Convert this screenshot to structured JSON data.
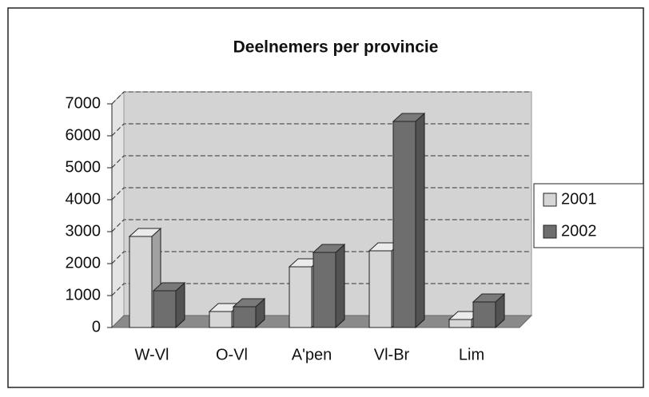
{
  "chart_data": {
    "type": "bar3d",
    "title": "Deelnemers per provincie",
    "categories": [
      "W-Vl",
      "O-Vl",
      "A'pen",
      "Vl-Br",
      "Lim"
    ],
    "series": [
      {
        "name": "2001",
        "color": "#d6d6d6",
        "values": [
          2850,
          500,
          1900,
          2400,
          250
        ]
      },
      {
        "name": "2002",
        "color": "#6e6e6e",
        "values": [
          1150,
          650,
          2350,
          6450,
          800
        ]
      }
    ],
    "ylim": [
      0,
      7000
    ],
    "yticks": [
      0,
      1000,
      2000,
      3000,
      4000,
      5000,
      6000,
      7000
    ],
    "grid": true,
    "legend": "right"
  }
}
